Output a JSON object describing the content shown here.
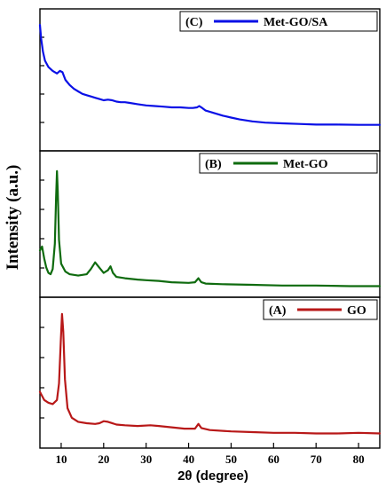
{
  "chart_data": {
    "type": "line",
    "xlabel": "2θ (degree)",
    "ylabel": "Intensity (a.u.)",
    "xlim": [
      5,
      85
    ],
    "xticks": [
      10,
      20,
      30,
      40,
      50,
      60,
      70,
      80
    ],
    "layout": "three vertically stacked panels sharing one x axis; y axis without numeric tick labels",
    "grid": false,
    "legend_placement": "top-right of each panel",
    "panels": [
      {
        "name": "C",
        "label": "(C)",
        "series_name": "Met-GO/SA",
        "color": "#0a10e6",
        "ylim": [
          0,
          1
        ],
        "points": [
          [
            5.0,
            0.93
          ],
          [
            5.3,
            0.82
          ],
          [
            5.7,
            0.72
          ],
          [
            6.2,
            0.65
          ],
          [
            7,
            0.6
          ],
          [
            8,
            0.57
          ],
          [
            9,
            0.55
          ],
          [
            9.7,
            0.57
          ],
          [
            10.3,
            0.56
          ],
          [
            11,
            0.5
          ],
          [
            12,
            0.46
          ],
          [
            13,
            0.43
          ],
          [
            14,
            0.41
          ],
          [
            15,
            0.39
          ],
          [
            16,
            0.38
          ],
          [
            17,
            0.37
          ],
          [
            18,
            0.36
          ],
          [
            19,
            0.35
          ],
          [
            20,
            0.34
          ],
          [
            21,
            0.345
          ],
          [
            22,
            0.34
          ],
          [
            23,
            0.33
          ],
          [
            24,
            0.325
          ],
          [
            25,
            0.325
          ],
          [
            26,
            0.32
          ],
          [
            28,
            0.31
          ],
          [
            30,
            0.3
          ],
          [
            32,
            0.295
          ],
          [
            34,
            0.29
          ],
          [
            36,
            0.285
          ],
          [
            38,
            0.285
          ],
          [
            40,
            0.28
          ],
          [
            41,
            0.28
          ],
          [
            42,
            0.285
          ],
          [
            42.5,
            0.295
          ],
          [
            43.2,
            0.28
          ],
          [
            44,
            0.26
          ],
          [
            46,
            0.24
          ],
          [
            48,
            0.22
          ],
          [
            50,
            0.205
          ],
          [
            52,
            0.19
          ],
          [
            55,
            0.175
          ],
          [
            58,
            0.165
          ],
          [
            62,
            0.16
          ],
          [
            66,
            0.155
          ],
          [
            70,
            0.15
          ],
          [
            75,
            0.15
          ],
          [
            80,
            0.148
          ],
          [
            85,
            0.148
          ]
        ]
      },
      {
        "name": "B",
        "label": "(B)",
        "series_name": "Met-GO",
        "color": "#0f6b0f",
        "ylim": [
          0,
          1
        ],
        "points": [
          [
            5.0,
            0.3
          ],
          [
            5.5,
            0.33
          ],
          [
            6.0,
            0.24
          ],
          [
            6.5,
            0.17
          ],
          [
            7,
            0.13
          ],
          [
            7.5,
            0.12
          ],
          [
            8,
            0.16
          ],
          [
            8.5,
            0.35
          ],
          [
            8.8,
            0.7
          ],
          [
            9.0,
            0.9
          ],
          [
            9.2,
            0.75
          ],
          [
            9.5,
            0.38
          ],
          [
            10,
            0.2
          ],
          [
            11,
            0.14
          ],
          [
            12,
            0.12
          ],
          [
            14,
            0.11
          ],
          [
            16,
            0.12
          ],
          [
            17,
            0.16
          ],
          [
            18,
            0.21
          ],
          [
            19,
            0.17
          ],
          [
            20,
            0.13
          ],
          [
            21,
            0.15
          ],
          [
            21.6,
            0.18
          ],
          [
            22.2,
            0.13
          ],
          [
            23,
            0.1
          ],
          [
            25,
            0.09
          ],
          [
            28,
            0.08
          ],
          [
            30,
            0.075
          ],
          [
            33,
            0.07
          ],
          [
            36,
            0.06
          ],
          [
            40,
            0.055
          ],
          [
            41.5,
            0.06
          ],
          [
            42.3,
            0.09
          ],
          [
            43,
            0.06
          ],
          [
            44,
            0.05
          ],
          [
            48,
            0.045
          ],
          [
            55,
            0.04
          ],
          [
            62,
            0.035
          ],
          [
            70,
            0.035
          ],
          [
            78,
            0.03
          ],
          [
            85,
            0.03
          ]
        ]
      },
      {
        "name": "A",
        "label": "(A)",
        "series_name": "GO",
        "color": "#b81818",
        "ylim": [
          0,
          1
        ],
        "points": [
          [
            5.0,
            0.36
          ],
          [
            5.5,
            0.33
          ],
          [
            6,
            0.3
          ],
          [
            7,
            0.28
          ],
          [
            8,
            0.27
          ],
          [
            9,
            0.3
          ],
          [
            9.5,
            0.42
          ],
          [
            9.9,
            0.73
          ],
          [
            10.2,
            0.93
          ],
          [
            10.5,
            0.8
          ],
          [
            10.9,
            0.45
          ],
          [
            11.5,
            0.24
          ],
          [
            12.5,
            0.17
          ],
          [
            14,
            0.14
          ],
          [
            16,
            0.13
          ],
          [
            18,
            0.125
          ],
          [
            19,
            0.13
          ],
          [
            20,
            0.145
          ],
          [
            21,
            0.14
          ],
          [
            23,
            0.12
          ],
          [
            25,
            0.115
          ],
          [
            28,
            0.11
          ],
          [
            31,
            0.115
          ],
          [
            33,
            0.11
          ],
          [
            36,
            0.1
          ],
          [
            39,
            0.09
          ],
          [
            41.5,
            0.09
          ],
          [
            42.3,
            0.125
          ],
          [
            43,
            0.095
          ],
          [
            45,
            0.08
          ],
          [
            50,
            0.07
          ],
          [
            55,
            0.065
          ],
          [
            60,
            0.06
          ],
          [
            65,
            0.06
          ],
          [
            70,
            0.055
          ],
          [
            75,
            0.055
          ],
          [
            80,
            0.06
          ],
          [
            85,
            0.055
          ]
        ]
      }
    ]
  }
}
